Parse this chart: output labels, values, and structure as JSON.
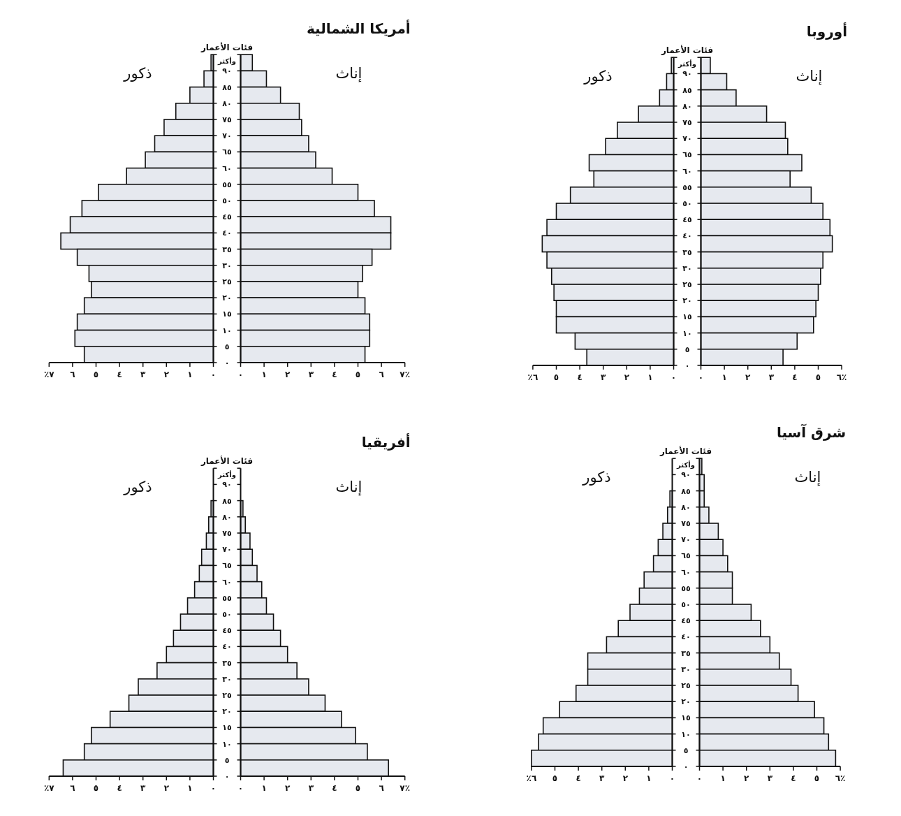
{
  "chart_data": [
    {
      "type": "bar",
      "orientation": "horizontal",
      "categories": [
        null,
        null,
        null,
        null,
        null,
        null,
        null,
        null,
        null,
        null,
        null,
        null,
        null,
        null,
        null,
        null,
        null,
        null,
        null
      ],
      "series": [
        {
          "name": "ذكور",
          "color": "#e6e9ef",
          "values": [
            0.1,
            0.4,
            1.0,
            1.6,
            2.1,
            2.5,
            2.9,
            3.7,
            4.9,
            5.6,
            6.1,
            6.5,
            5.8,
            5.3,
            5.2,
            5.5,
            5.8,
            5.9,
            5.5
          ]
        }
      ],
      "xlim": [
        7,
        0
      ],
      "xticks": [
        {
          "value": 7,
          "label": "٪٧"
        },
        {
          "value": 6,
          "label": "٦"
        },
        {
          "value": 5,
          "label": "٥"
        },
        {
          "value": 4,
          "label": "٤"
        },
        {
          "value": 3,
          "label": "٣"
        },
        {
          "value": 2,
          "label": "٢"
        },
        {
          "value": 1,
          "label": "١"
        },
        {
          "value": 0,
          "label": "٠"
        }
      ]
    },
    {
      "type": "bar",
      "orientation": "horizontal",
      "title": "أمريكا الشمالية",
      "ylabel": "فئات الأعمار",
      "categories": [
        "٩٠ وأكثر",
        "٨٥",
        "٨٠",
        "٧٥",
        "٧٠",
        "٦٥",
        "٦٠",
        "٥٥",
        "٥٠",
        "٤٥",
        "٤٠",
        "٣٥",
        "٣٠",
        "٢٥",
        "٢٠",
        "١٥",
        "١٠",
        "٥",
        "٠"
      ],
      "series": [
        {
          "name": "إناث",
          "color": "#e6e9ef",
          "values": [
            0.5,
            1.1,
            1.7,
            2.5,
            2.6,
            2.9,
            3.2,
            3.9,
            5.0,
            5.7,
            6.4,
            6.4,
            5.6,
            5.2,
            5.0,
            5.3,
            5.5,
            5.5,
            5.3
          ]
        }
      ],
      "xlim": [
        0,
        7
      ],
      "xticks": [
        {
          "value": 0,
          "label": "٠"
        },
        {
          "value": 1,
          "label": "١"
        },
        {
          "value": 2,
          "label": "٢"
        },
        {
          "value": 3,
          "label": "٣"
        },
        {
          "value": 4,
          "label": "٤"
        },
        {
          "value": 5,
          "label": "٥"
        },
        {
          "value": 6,
          "label": "٦"
        },
        {
          "value": 7,
          "label": "٧٪"
        }
      ]
    },
    {
      "type": "bar",
      "orientation": "horizontal",
      "categories": [
        null,
        null,
        null,
        null,
        null,
        null,
        null,
        null,
        null,
        null,
        null,
        null,
        null,
        null,
        null,
        null,
        null,
        null,
        null
      ],
      "series": [
        {
          "name": "ذكور",
          "color": "#e6e9ef",
          "values": [
            0.1,
            0.3,
            0.6,
            1.5,
            2.4,
            2.9,
            3.6,
            3.4,
            4.4,
            5.0,
            5.4,
            5.6,
            5.4,
            5.2,
            5.1,
            5.0,
            5.0,
            4.2,
            3.7
          ]
        }
      ],
      "xlim": [
        6,
        0
      ],
      "xticks": [
        {
          "value": 6,
          "label": "٪٦"
        },
        {
          "value": 5,
          "label": "٥"
        },
        {
          "value": 4,
          "label": "٤"
        },
        {
          "value": 3,
          "label": "٣"
        },
        {
          "value": 2,
          "label": "٢"
        },
        {
          "value": 1,
          "label": "١"
        },
        {
          "value": 0,
          "label": "٠"
        }
      ]
    },
    {
      "type": "bar",
      "orientation": "horizontal",
      "title": "أوروبا",
      "ylabel": "فئات الأعمار",
      "categories": [
        "٩٠ وأكثر",
        "٨٥",
        "٨٠",
        "٧٥",
        "٧٠",
        "٦٥",
        "٦٠",
        "٥٥",
        "٥٠",
        "٤٥",
        "٤٠",
        "٣٥",
        "٣٠",
        "٢٥",
        "٢٠",
        "١٥",
        "١٠",
        "٥",
        "٠"
      ],
      "series": [
        {
          "name": "إناث",
          "color": "#e6e9ef",
          "values": [
            0.4,
            1.1,
            1.5,
            2.8,
            3.6,
            3.7,
            4.3,
            3.8,
            4.7,
            5.2,
            5.5,
            5.6,
            5.2,
            5.1,
            5.0,
            4.9,
            4.8,
            4.1,
            3.5
          ]
        }
      ],
      "xlim": [
        0,
        6
      ],
      "xticks": [
        {
          "value": 0,
          "label": "٠"
        },
        {
          "value": 1,
          "label": "١"
        },
        {
          "value": 2,
          "label": "٢"
        },
        {
          "value": 3,
          "label": "٣"
        },
        {
          "value": 4,
          "label": "٤"
        },
        {
          "value": 5,
          "label": "٥"
        },
        {
          "value": 6,
          "label": "٦٪"
        }
      ]
    },
    {
      "type": "bar",
      "orientation": "horizontal",
      "categories": [
        null,
        null,
        null,
        null,
        null,
        null,
        null,
        null,
        null,
        null,
        null,
        null,
        null,
        null,
        null,
        null,
        null,
        null,
        null
      ],
      "series": [
        {
          "name": "ذكور",
          "color": "#e6e9ef",
          "values": [
            0,
            0,
            0.1,
            0.2,
            0.3,
            0.5,
            0.6,
            0.8,
            1.1,
            1.4,
            1.7,
            2.0,
            2.4,
            3.2,
            3.6,
            4.4,
            5.2,
            5.5,
            6.4
          ]
        }
      ],
      "xlim": [
        7,
        0
      ],
      "xticks": [
        {
          "value": 7,
          "label": "٪٧"
        },
        {
          "value": 6,
          "label": "٦"
        },
        {
          "value": 5,
          "label": "٥"
        },
        {
          "value": 4,
          "label": "٤"
        },
        {
          "value": 3,
          "label": "٣"
        },
        {
          "value": 2,
          "label": "٢"
        },
        {
          "value": 1,
          "label": "١"
        },
        {
          "value": 0,
          "label": "٠"
        }
      ]
    },
    {
      "type": "bar",
      "orientation": "horizontal",
      "title": "أفريقيا",
      "ylabel": "فئات الأعمار",
      "categories": [
        "٩٠ وأكثر",
        "٨٥",
        "٨٠",
        "٧٥",
        "٧٠",
        "٦٥",
        "٦٠",
        "٥٥",
        "٥٠",
        "٤٥",
        "٤٠",
        "٣٥",
        "٣٠",
        "٢٥",
        "٢٠",
        "١٥",
        "١٠",
        "٥",
        "٠"
      ],
      "series": [
        {
          "name": "إناث",
          "color": "#e6e9ef",
          "values": [
            0,
            0,
            0.1,
            0.2,
            0.4,
            0.5,
            0.7,
            0.9,
            1.1,
            1.4,
            1.7,
            2.0,
            2.4,
            2.9,
            3.6,
            4.3,
            4.9,
            5.4,
            6.3
          ]
        }
      ],
      "xlim": [
        0,
        7
      ],
      "xticks": [
        {
          "value": 0,
          "label": "٠"
        },
        {
          "value": 1,
          "label": "١"
        },
        {
          "value": 2,
          "label": "٢"
        },
        {
          "value": 3,
          "label": "٣"
        },
        {
          "value": 4,
          "label": "٤"
        },
        {
          "value": 5,
          "label": "٥"
        },
        {
          "value": 6,
          "label": "٦"
        },
        {
          "value": 7,
          "label": "٧٪"
        }
      ]
    },
    {
      "type": "bar",
      "orientation": "horizontal",
      "categories": [
        null,
        null,
        null,
        null,
        null,
        null,
        null,
        null,
        null,
        null,
        null,
        null,
        null,
        null,
        null,
        null,
        null,
        null,
        null
      ],
      "series": [
        {
          "name": "ذكور",
          "color": "#e6e9ef",
          "values": [
            0,
            0,
            0.1,
            0.2,
            0.4,
            0.6,
            0.8,
            1.2,
            1.4,
            1.8,
            2.3,
            2.8,
            3.6,
            3.6,
            4.1,
            4.8,
            5.5,
            5.7,
            6.0
          ]
        }
      ],
      "xlim": [
        6,
        0
      ],
      "xticks": [
        {
          "value": 6,
          "label": "٪٦"
        },
        {
          "value": 5,
          "label": "٥"
        },
        {
          "value": 4,
          "label": "٤"
        },
        {
          "value": 3,
          "label": "٣"
        },
        {
          "value": 2,
          "label": "٢"
        },
        {
          "value": 1,
          "label": "١"
        },
        {
          "value": 0,
          "label": "٠"
        }
      ]
    },
    {
      "type": "bar",
      "orientation": "horizontal",
      "title": "شرق آسيا",
      "ylabel": "فئات الأعمار",
      "categories": [
        "٩٠ وأكثر",
        "٨٥",
        "٨٠",
        "٧٥",
        "٧٠",
        "٦٥",
        "٦٠",
        "٥٥",
        "٥٠",
        "٤٥",
        "٤٠",
        "٣٥",
        "٣٠",
        "٢٥",
        "٢٠",
        "١٥",
        "١٠",
        "٥",
        "٠"
      ],
      "series": [
        {
          "name": "إناث",
          "color": "#e6e9ef",
          "values": [
            0.1,
            0.2,
            0.2,
            0.4,
            0.8,
            1.0,
            1.2,
            1.4,
            1.4,
            2.2,
            2.6,
            3.0,
            3.4,
            3.9,
            4.2,
            4.9,
            5.3,
            5.5,
            5.8
          ]
        }
      ],
      "xlim": [
        0,
        6
      ],
      "xticks": [
        {
          "value": 0,
          "label": "٠"
        },
        {
          "value": 1,
          "label": "١"
        },
        {
          "value": 2,
          "label": "٢"
        },
        {
          "value": 3,
          "label": "٣"
        },
        {
          "value": 4,
          "label": "٤"
        },
        {
          "value": 5,
          "label": "٥"
        },
        {
          "value": 6,
          "label": "٦٪"
        }
      ]
    }
  ]
}
